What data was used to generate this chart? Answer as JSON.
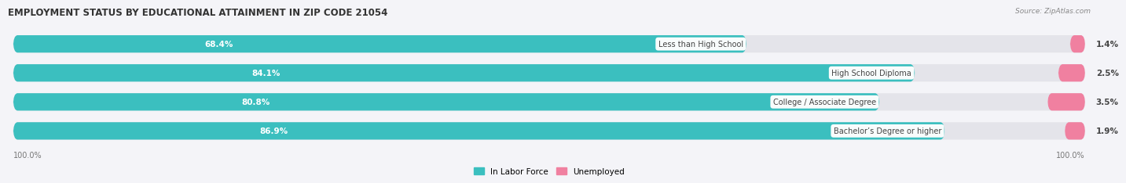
{
  "title": "EMPLOYMENT STATUS BY EDUCATIONAL ATTAINMENT IN ZIP CODE 21054",
  "source": "Source: ZipAtlas.com",
  "categories": [
    "Less than High School",
    "High School Diploma",
    "College / Associate Degree",
    "Bachelor’s Degree or higher"
  ],
  "labor_force": [
    68.4,
    84.1,
    80.8,
    86.9
  ],
  "unemployed": [
    1.4,
    2.5,
    3.5,
    1.9
  ],
  "labor_force_color": "#3BBFBF",
  "unemployed_color": "#F080A0",
  "bar_bg_color": "#E4E4EA",
  "background_color": "#F4F4F8",
  "text_color_white": "#FFFFFF",
  "text_color_dark": "#444444",
  "axis_label_left": "100.0%",
  "axis_label_right": "100.0%",
  "legend_labor": "In Labor Force",
  "legend_unemployed": "Unemployed",
  "title_fontsize": 8.5,
  "bar_height": 0.6,
  "total_width": 100.0
}
